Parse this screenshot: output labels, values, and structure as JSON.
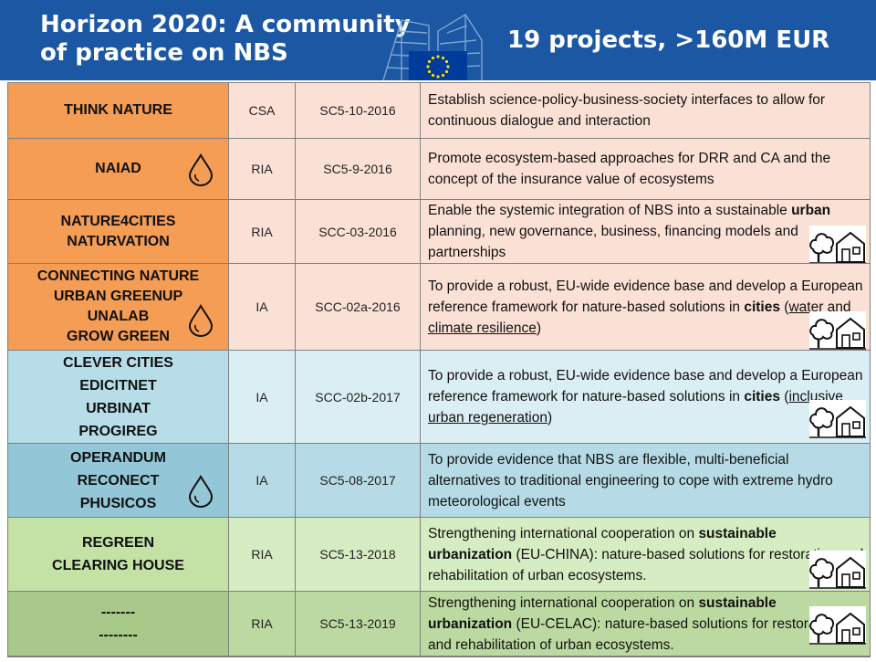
{
  "header": {
    "title_line1": "Horizon 2020: A community",
    "title_line2": "of practice on NBS",
    "subtitle": "19 projects, >160M EUR"
  },
  "colors": {
    "header_bg": "#1b57a3",
    "orange": "#f59d54",
    "orange_light": "#fbe1d5",
    "blue": "#b7dde8",
    "blue_light": "#dbeef4",
    "blue_mid": "#93c6d6",
    "blue_mid_light": "#b6dbe6",
    "green": "#c4e2a6",
    "green_light": "#d6ecc3",
    "green_dark": "#a9c98b",
    "green_dark_light": "#bcd9a1"
  },
  "rows": [
    {
      "names": [
        "THINK NATURE"
      ],
      "type": "CSA",
      "call": "SC5-10-2016",
      "desc": [
        {
          "t": "Establish science-policy-business-society interfaces to allow for continuous dialogue and interaction",
          "s": ""
        }
      ],
      "icons": []
    },
    {
      "names": [
        "NAIAD"
      ],
      "type": "RIA",
      "call": "SC5-9-2016",
      "desc": [
        {
          "t": "Promote ecosystem-based approaches for DRR and CA and the concept of the insurance value of ecosystems",
          "s": ""
        }
      ],
      "icons": [
        "water-drop-icon"
      ]
    },
    {
      "names": [
        "NATURE4CITIES",
        "NATURVATION"
      ],
      "type": "RIA",
      "call": "SCC-03-2016",
      "desc": [
        {
          "t": "Enable the systemic integration of NBS into a sustainable ",
          "s": ""
        },
        {
          "t": "urban",
          "s": "b"
        },
        {
          "t": " planning, new governance, business, financing models and partnerships",
          "s": ""
        }
      ],
      "icons": [
        "tree-house-icon"
      ]
    },
    {
      "names": [
        "CONNECTING NATURE",
        "URBAN GREENUP",
        "UNALAB",
        "GROW GREEN"
      ],
      "type": "IA",
      "call": "SCC-02a-2016",
      "desc": [
        {
          "t": "To provide a robust, EU-wide evidence base and develop a European reference framework for nature-based solutions in ",
          "s": ""
        },
        {
          "t": "cities",
          "s": "b"
        },
        {
          "t": " (",
          "s": ""
        },
        {
          "t": "water and climate resilience",
          "s": "u"
        },
        {
          "t": ")",
          "s": ""
        }
      ],
      "icons": [
        "water-drop-icon",
        "tree-house-icon"
      ]
    },
    {
      "names": [
        "CLEVER CITIES",
        "EDICITNET",
        "URBINAT",
        "PROGIREG"
      ],
      "type": "IA",
      "call": "SCC-02b-2017",
      "desc": [
        {
          "t": "To provide a robust, EU-wide evidence base and develop a European reference framework for nature-based solutions in ",
          "s": ""
        },
        {
          "t": "cities",
          "s": "b"
        },
        {
          "t": " (",
          "s": ""
        },
        {
          "t": "inclusive urban regeneration",
          "s": "u"
        },
        {
          "t": ")",
          "s": ""
        }
      ],
      "icons": [
        "tree-house-icon"
      ]
    },
    {
      "names": [
        "OPERANDUM",
        "RECONECT",
        "PHUSICOS"
      ],
      "type": "IA",
      "call": "SC5-08-2017",
      "desc": [
        {
          "t": "To provide evidence that NBS are flexible, multi-beneficial alternatives to traditional engineering to cope with extreme hydro meteorological events",
          "s": ""
        }
      ],
      "icons": [
        "water-drop-icon"
      ]
    },
    {
      "names": [
        "REGREEN",
        "CLEARING HOUSE"
      ],
      "type": "RIA",
      "call": "SC5-13-2018",
      "desc": [
        {
          "t": "Strengthening international cooperation on ",
          "s": ""
        },
        {
          "t": "sustainable urbanization",
          "s": "b"
        },
        {
          "t": " (EU-CHINA): nature-based solutions for restoration and rehabilitation of urban ecosystems.",
          "s": ""
        }
      ],
      "icons": [
        "tree-house-icon"
      ]
    },
    {
      "names": [
        "-------",
        "--------"
      ],
      "type": "RIA",
      "call": "SC5-13-2019",
      "desc": [
        {
          "t": "Strengthening international cooperation on ",
          "s": ""
        },
        {
          "t": "sustainable urbanization",
          "s": "b"
        },
        {
          "t": " (EU-CELAC): nature-based solutions for restoration and rehabilitation of urban ecosystems.",
          "s": ""
        }
      ],
      "icons": [
        "tree-house-icon"
      ]
    }
  ]
}
